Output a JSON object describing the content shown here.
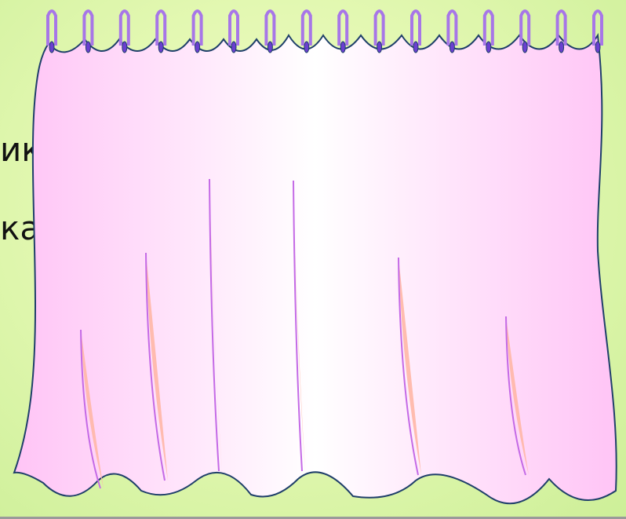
{
  "slide": {
    "background_color": "#d8f5a6",
    "text_lines": [
      "ик",
      "ка"
    ]
  },
  "curtain": {
    "fabric_edge_color": "#ffc4f6",
    "fabric_center_color": "#ffffff",
    "outline_color": "#1f3f6a",
    "ring_color": "#a776e8",
    "ring_inner_color": "#6a3fd0",
    "fold_line_color": "#c46ae6",
    "fold_shadow_color": "#ffb7a6",
    "ring_count": 16,
    "fold_count": 6
  }
}
